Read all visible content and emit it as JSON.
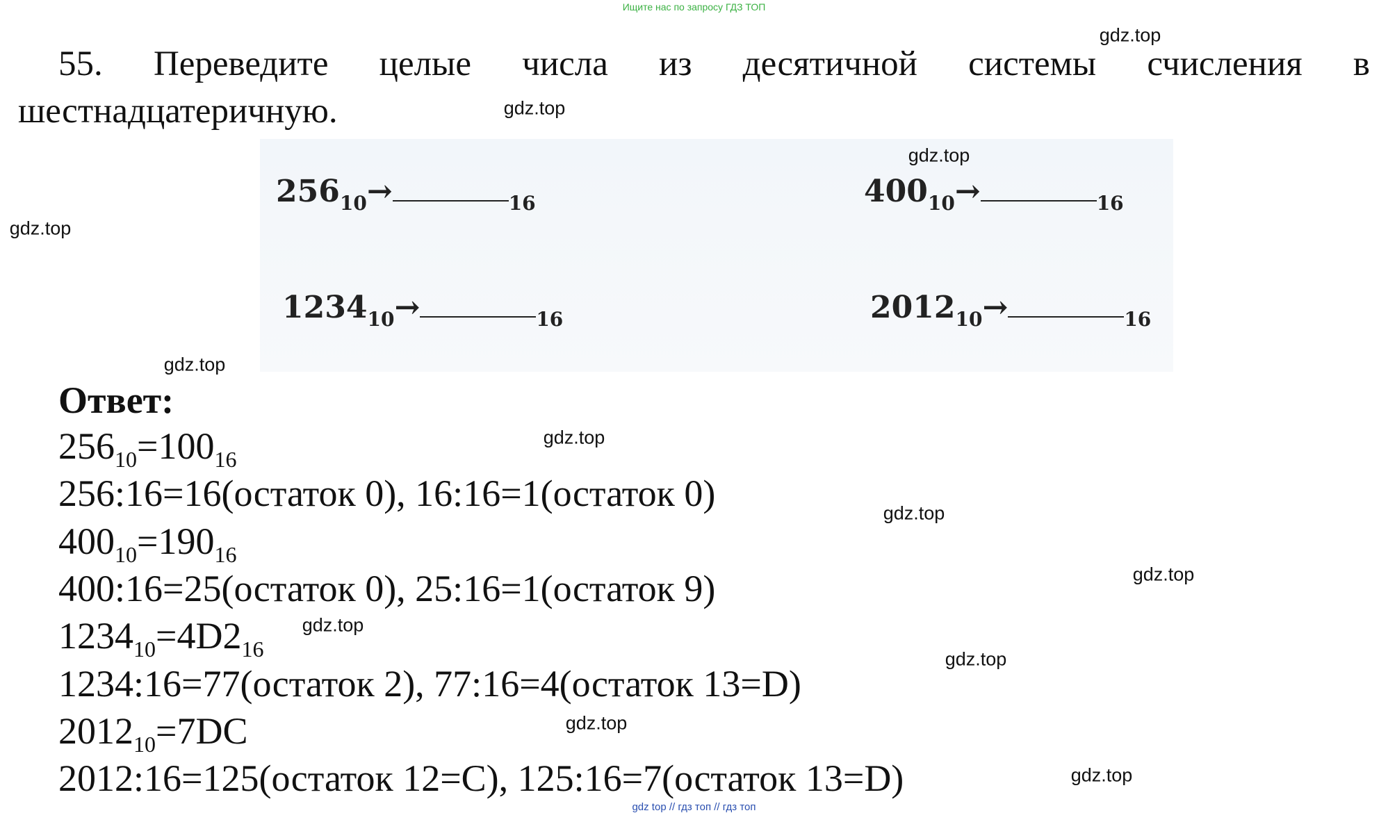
{
  "header": {
    "banner": "Ищите нас по запросу ГДЗ ТОП"
  },
  "problem": {
    "lines": [
      "55. Переведите целые числа из десятичной системы счисления в",
      "шестнадцатеричную."
    ]
  },
  "task": {
    "items": [
      {
        "number": "256",
        "from": "10",
        "arrow": "→",
        "to": "16"
      },
      {
        "number": "400",
        "from": "10",
        "arrow": "→",
        "to": "16"
      },
      {
        "number": "1234",
        "from": "10",
        "arrow": "→",
        "to": "16"
      },
      {
        "number": "2012",
        "from": "10",
        "arrow": "→",
        "to": "16"
      }
    ]
  },
  "answer": {
    "title": "Ответ:",
    "lines": [
      [
        "256",
        "10",
        "=100",
        "16"
      ],
      [
        "256:16=16(остаток 0), 16:16=1(остаток 0)"
      ],
      [
        "400",
        "10",
        "=190",
        "16"
      ],
      [
        "400:16=25(остаток 0), 25:16=1(остаток 9)"
      ],
      [
        "1234",
        "10",
        "=4D2",
        "16"
      ],
      [
        "1234:16=77(остаток 2), 77:16=4(остаток 13=D)"
      ],
      [
        "2012",
        "10",
        "=7DC"
      ],
      [
        "2012:16=125(остаток 12=C), 125:16=7(остаток 13=D)"
      ]
    ]
  },
  "watermarks": [
    "gdz.top",
    "gdz.top",
    "gdz.top",
    "gdz.top",
    "gdz.top",
    "gdz.top",
    "gdz.top",
    "gdz.top",
    "gdz.top",
    "gdz.top",
    "gdz.top",
    "gdz.top"
  ],
  "footer": {
    "text": "gdz top // гдз топ // гдз топ"
  }
}
